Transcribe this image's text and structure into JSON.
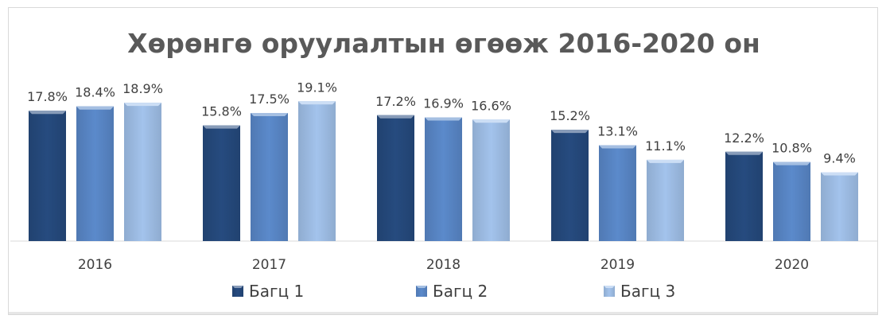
{
  "chart_data": {
    "type": "bar",
    "title": "Хөрөнгө оруулалтын өгөөж 2016-2020 он",
    "categories": [
      "2016",
      "2017",
      "2018",
      "2019",
      "2020"
    ],
    "series": [
      {
        "name": "Багц 1",
        "values": [
          17.8,
          15.8,
          17.2,
          15.2,
          12.2
        ],
        "labels": [
          "17.8%",
          "15.8%",
          "17.2%",
          "15.2%",
          "12.2%"
        ],
        "color": "#264B7F"
      },
      {
        "name": "Багц 2",
        "values": [
          18.4,
          17.5,
          16.9,
          13.1,
          10.8
        ],
        "labels": [
          "18.4%",
          "17.5%",
          "16.9%",
          "13.1%",
          "10.8%"
        ],
        "color": "#5B8ACB"
      },
      {
        "name": "Багц 3",
        "values": [
          18.9,
          19.1,
          16.6,
          11.1,
          9.4
        ],
        "labels": [
          "18.9%",
          "19.1%",
          "16.6%",
          "11.1%",
          "9.4%"
        ],
        "color": "#A3C3EC"
      }
    ],
    "xlabel": "",
    "ylabel": "",
    "ylim": [
      0,
      20
    ],
    "grid": false,
    "legend": "bottom"
  }
}
